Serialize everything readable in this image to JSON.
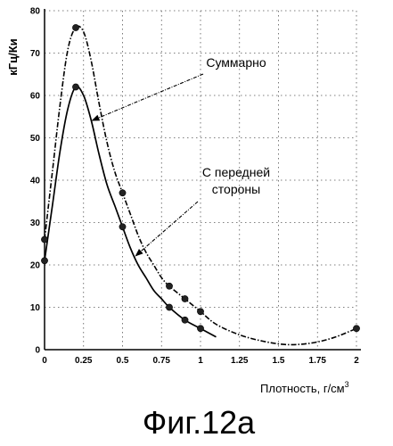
{
  "chart_data": {
    "type": "line",
    "ylabel": "кГц/Ки",
    "xlabel": "Плотность, г/см",
    "xlabel_sup": "3",
    "caption": "Фиг.12а",
    "xlim": [
      0,
      2
    ],
    "ylim": [
      0,
      80
    ],
    "x_ticks": [
      0,
      0.25,
      0.5,
      0.75,
      1,
      1.25,
      1.5,
      1.75,
      2
    ],
    "x_tick_labels": [
      "0",
      "0.25",
      "0.5",
      "0.75",
      "1",
      "1.25",
      "1.5",
      "1.75",
      "2"
    ],
    "y_ticks": [
      0,
      10,
      20,
      30,
      40,
      50,
      60,
      70,
      80
    ],
    "y_tick_labels": [
      "0",
      "10",
      "20",
      "30",
      "40",
      "50",
      "60",
      "70",
      "80"
    ],
    "grid": true,
    "series": [
      {
        "name": "Суммарно",
        "points": [
          [
            0,
            26
          ],
          [
            0.2,
            76
          ],
          [
            0.5,
            37
          ],
          [
            0.8,
            15
          ],
          [
            0.9,
            12
          ],
          [
            1.0,
            9
          ],
          [
            2.0,
            5
          ]
        ],
        "curve": [
          [
            0,
            26
          ],
          [
            0.05,
            42
          ],
          [
            0.1,
            58
          ],
          [
            0.15,
            71
          ],
          [
            0.2,
            76
          ],
          [
            0.25,
            75
          ],
          [
            0.3,
            68
          ],
          [
            0.35,
            58
          ],
          [
            0.4,
            49
          ],
          [
            0.45,
            42
          ],
          [
            0.5,
            37
          ],
          [
            0.55,
            32
          ],
          [
            0.6,
            27
          ],
          [
            0.65,
            23
          ],
          [
            0.7,
            20
          ],
          [
            0.75,
            17
          ],
          [
            0.8,
            15
          ],
          [
            0.9,
            12
          ],
          [
            1.0,
            9
          ],
          [
            1.1,
            6
          ],
          [
            1.25,
            3.5
          ],
          [
            1.4,
            2
          ],
          [
            1.55,
            1.2
          ],
          [
            1.7,
            1.5
          ],
          [
            1.85,
            2.8
          ],
          [
            2.0,
            5
          ]
        ]
      },
      {
        "name": "С передней стороны",
        "points": [
          [
            0,
            21
          ],
          [
            0.2,
            62
          ],
          [
            0.5,
            29
          ],
          [
            0.8,
            10
          ],
          [
            0.9,
            7
          ],
          [
            1.0,
            5
          ]
        ],
        "curve": [
          [
            0,
            21
          ],
          [
            0.05,
            34
          ],
          [
            0.1,
            47
          ],
          [
            0.15,
            57
          ],
          [
            0.2,
            62
          ],
          [
            0.25,
            60
          ],
          [
            0.3,
            54
          ],
          [
            0.35,
            46
          ],
          [
            0.4,
            39
          ],
          [
            0.45,
            34
          ],
          [
            0.5,
            29
          ],
          [
            0.55,
            24
          ],
          [
            0.6,
            20
          ],
          [
            0.65,
            17
          ],
          [
            0.7,
            14
          ],
          [
            0.75,
            12
          ],
          [
            0.8,
            10
          ],
          [
            0.9,
            7
          ],
          [
            1.0,
            5
          ],
          [
            1.1,
            3
          ]
        ]
      }
    ],
    "annotations": [
      {
        "text": "Суммарно",
        "lines": [
          "Суммарно"
        ],
        "arrow_to": [
          0.3,
          54
        ]
      },
      {
        "text": "С передней стороны",
        "lines": [
          "С передней",
          "стороны"
        ],
        "arrow_to": [
          0.58,
          22
        ]
      }
    ]
  }
}
